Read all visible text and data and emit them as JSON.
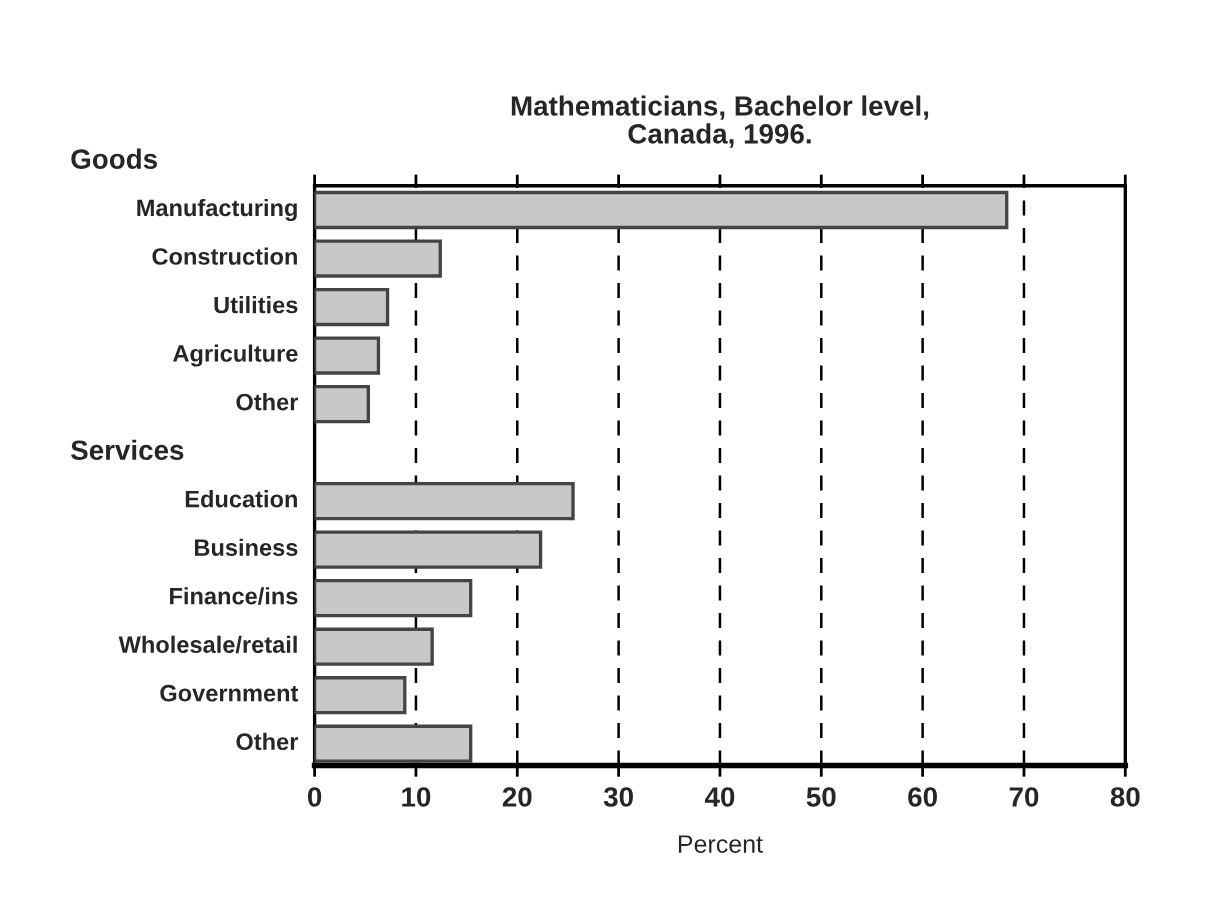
{
  "chart_data": {
    "type": "bar",
    "orientation": "horizontal",
    "title": "Mathematicians, Bachelor level,\nCanada, 1996.",
    "xlabel": "Percent",
    "annotations": [
      "Goods",
      "Services"
    ],
    "categories": [
      null,
      "Manufacturing",
      "Construction",
      "Utilities",
      "Agriculture",
      "Other",
      null,
      "Education",
      "Business",
      "Finance/ins",
      "Wholesale/retail",
      "Government",
      "Other"
    ],
    "values": [
      null,
      68.3,
      12.4,
      7.2,
      6.3,
      5.3,
      null,
      25.5,
      22.3,
      15.4,
      11.6,
      8.9,
      15.4
    ],
    "color": "#c8c8c8",
    "xlim": [
      0,
      80
    ],
    "xticks": [
      0,
      10,
      20,
      30,
      40,
      50,
      60,
      70,
      80
    ],
    "grid": "x",
    "legend": false
  }
}
